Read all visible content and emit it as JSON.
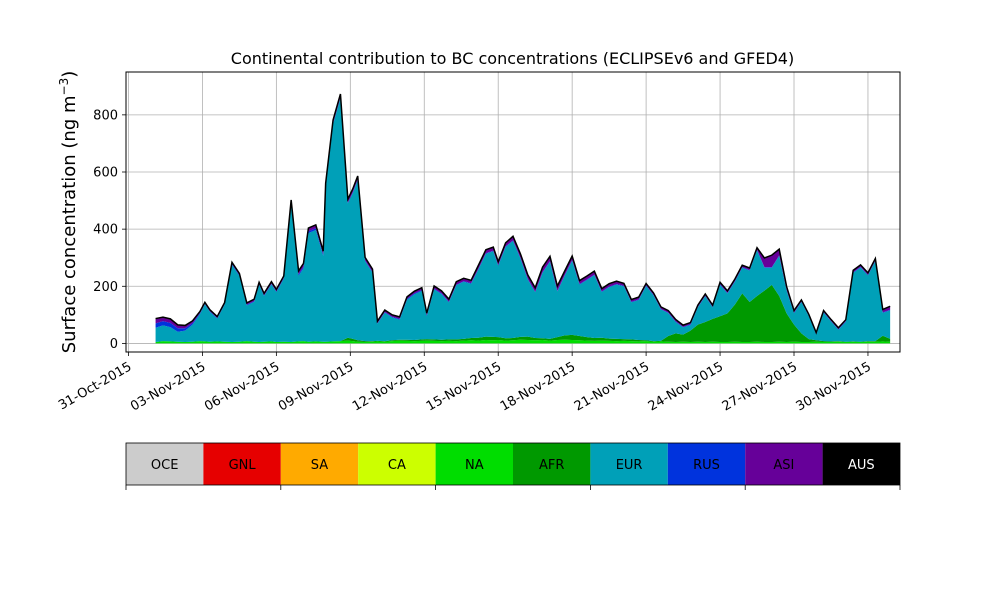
{
  "chart_data": {
    "type": "area",
    "title": "Continental contribution to BC concentrations (ECLIPSEv6 and GFED4)",
    "ylabel": "Surface concentration (ng m",
    "ylabel_superscript": "−3",
    "ylabel_close": ")",
    "xlabel": "",
    "ylim": [
      -30,
      950
    ],
    "yticks": [
      0,
      200,
      400,
      600,
      800
    ],
    "x_start": "31-Oct-2015",
    "x_days": [
      -0.1,
      31.3
    ],
    "x_tick_labels": [
      "31-Oct-2015",
      "03-Nov-2015",
      "06-Nov-2015",
      "09-Nov-2015",
      "12-Nov-2015",
      "15-Nov-2015",
      "18-Nov-2015",
      "21-Nov-2015",
      "24-Nov-2015",
      "27-Nov-2015",
      "30-Nov-2015"
    ],
    "grid": true,
    "legend_placement": "bottom colorbar",
    "x": [
      1.1,
      1.4,
      1.7,
      2.0,
      2.3,
      2.6,
      2.9,
      3.1,
      3.3,
      3.6,
      3.9,
      4.2,
      4.5,
      4.8,
      5.1,
      5.3,
      5.5,
      5.8,
      6.0,
      6.3,
      6.6,
      6.9,
      7.1,
      7.3,
      7.6,
      7.9,
      8.0,
      8.3,
      8.6,
      8.9,
      9.1,
      9.3,
      9.6,
      9.9,
      10.1,
      10.4,
      10.7,
      11.0,
      11.3,
      11.6,
      11.9,
      12.1,
      12.4,
      12.7,
      13.0,
      13.3,
      13.6,
      13.9,
      14.2,
      14.5,
      14.8,
      15.0,
      15.3,
      15.6,
      15.9,
      16.2,
      16.5,
      16.8,
      17.1,
      17.4,
      17.7,
      18.0,
      18.3,
      18.6,
      18.9,
      19.2,
      19.5,
      19.8,
      20.1,
      20.4,
      20.7,
      21.0,
      21.3,
      21.6,
      21.9,
      22.2,
      22.5,
      22.8,
      23.1,
      23.4,
      23.7,
      24.0,
      24.3,
      24.6,
      24.9,
      25.2,
      25.5,
      25.8,
      26.1,
      26.4,
      26.7,
      27.0,
      27.3,
      27.6,
      27.9,
      28.2,
      28.5,
      28.8,
      29.1,
      29.4,
      29.7,
      30.0,
      30.3,
      30.6,
      30.9
    ],
    "series": [
      {
        "name": "OCE",
        "color": "#cccccc",
        "values": [
          0,
          0,
          0,
          0,
          0,
          0,
          0,
          0,
          0,
          0,
          0,
          0,
          0,
          0,
          0,
          0,
          0,
          0,
          0,
          0,
          0,
          0,
          0,
          0,
          0,
          0,
          0,
          0,
          0,
          0,
          0,
          0,
          0,
          0,
          0,
          0,
          0,
          0,
          0,
          0,
          0,
          0,
          0,
          0,
          0,
          0,
          0,
          0,
          0,
          0,
          0,
          0,
          0,
          0,
          0,
          0,
          0,
          0,
          0,
          0,
          0,
          0,
          0,
          0,
          0,
          0,
          0,
          0,
          0,
          0,
          0,
          0,
          0,
          0,
          0,
          0,
          0,
          0,
          0,
          0,
          0,
          0,
          0,
          0,
          0,
          0,
          0,
          0,
          0,
          0,
          0,
          0,
          0,
          0,
          0,
          0,
          0,
          0,
          0,
          0,
          0,
          0,
          0,
          0,
          0
        ]
      },
      {
        "name": "GNL",
        "color": "#e60000",
        "values": [
          0,
          0,
          0,
          0,
          0,
          0,
          0,
          0,
          0,
          0,
          0,
          0,
          0,
          0,
          0,
          0,
          0,
          0,
          0,
          0,
          0,
          0,
          0,
          0,
          0,
          0,
          0,
          0,
          0,
          0,
          0,
          0,
          0,
          0,
          0,
          0,
          0,
          0,
          0,
          0,
          0,
          0,
          0,
          0,
          0,
          0,
          0,
          0,
          0,
          0,
          0,
          0,
          0,
          0,
          0,
          0,
          0,
          0,
          0,
          0,
          0,
          0,
          0,
          0,
          0,
          0,
          0,
          0,
          0,
          0,
          0,
          0,
          0,
          0,
          0,
          0,
          0,
          0,
          0,
          0,
          0,
          0,
          0,
          0,
          0,
          0,
          0,
          0,
          0,
          0,
          0,
          0,
          0,
          0,
          0,
          0,
          0,
          0,
          0,
          0,
          0,
          0,
          0,
          0,
          0
        ]
      },
      {
        "name": "SA",
        "color": "#ffaa00",
        "values": [
          0,
          0,
          0,
          0,
          0,
          0,
          0,
          0,
          0,
          0,
          0,
          0,
          0,
          0,
          0,
          0,
          0,
          0,
          0,
          0,
          0,
          0,
          0,
          0,
          0,
          0,
          0,
          0,
          0,
          0,
          0,
          0,
          0,
          0,
          0,
          0,
          0,
          0,
          0,
          0,
          0,
          0,
          0,
          0,
          0,
          0,
          0,
          0,
          0,
          0,
          0,
          0,
          0,
          0,
          0,
          0,
          0,
          0,
          0,
          0,
          0,
          0,
          0,
          0,
          0,
          0,
          0,
          0,
          0,
          0,
          0,
          0,
          0,
          0,
          0,
          0,
          0,
          0,
          0,
          0,
          0,
          0,
          0,
          0,
          0,
          0,
          0,
          0,
          0,
          0,
          0,
          0,
          0,
          0,
          0,
          0,
          0,
          0,
          0,
          0,
          0,
          0,
          0,
          0,
          0
        ]
      },
      {
        "name": "CA",
        "color": "#ccff00",
        "values": [
          0,
          0,
          0,
          0,
          0,
          0,
          0,
          0,
          0,
          0,
          0,
          0,
          0,
          0,
          0,
          0,
          0,
          0,
          0,
          0,
          0,
          0,
          0,
          0,
          0,
          0,
          0,
          0,
          0,
          0,
          0,
          0,
          0,
          0,
          0,
          0,
          0,
          0,
          0,
          0,
          0,
          0,
          0,
          0,
          0,
          0,
          0,
          0,
          0,
          0,
          0,
          0,
          0,
          0,
          0,
          0,
          0,
          0,
          0,
          0,
          0,
          0,
          0,
          0,
          0,
          0,
          0,
          0,
          0,
          0,
          0,
          0,
          0,
          0,
          0,
          0,
          0,
          0,
          0,
          0,
          0,
          0,
          0,
          0,
          0,
          0,
          0,
          0,
          0,
          0,
          0,
          0,
          0,
          0,
          0,
          0,
          0,
          0,
          0,
          0,
          0,
          0,
          0,
          0,
          0
        ]
      },
      {
        "name": "NA",
        "color": "#00dd00",
        "values": [
          5,
          8,
          7,
          6,
          5,
          6,
          8,
          7,
          6,
          7,
          6,
          5,
          6,
          8,
          6,
          5,
          6,
          7,
          5,
          6,
          5,
          7,
          8,
          6,
          7,
          6,
          6,
          7,
          8,
          10,
          8,
          6,
          5,
          6,
          7,
          6,
          8,
          10,
          9,
          8,
          9,
          10,
          9,
          8,
          9,
          8,
          10,
          11,
          10,
          12,
          11,
          12,
          10,
          11,
          13,
          12,
          11,
          12,
          10,
          12,
          13,
          12,
          11,
          10,
          9,
          10,
          9,
          8,
          9,
          8,
          7,
          8,
          6,
          7,
          6,
          5,
          6,
          5,
          6,
          5,
          6,
          5,
          5,
          6,
          5,
          5,
          6,
          5,
          5,
          6,
          5,
          6,
          5,
          5,
          6,
          5,
          5,
          6,
          5,
          6,
          5,
          6,
          6,
          7,
          6
        ]
      },
      {
        "name": "AFR",
        "color": "#009900",
        "values": [
          0,
          0,
          0,
          0,
          0,
          0,
          0,
          0,
          0,
          0,
          0,
          0,
          0,
          0,
          0,
          0,
          0,
          0,
          0,
          0,
          0,
          0,
          0,
          0,
          0,
          0,
          0,
          0,
          0,
          10,
          8,
          5,
          3,
          2,
          2,
          2,
          3,
          3,
          4,
          4,
          5,
          5,
          5,
          5,
          5,
          6,
          6,
          8,
          10,
          12,
          12,
          10,
          8,
          8,
          10,
          12,
          8,
          6,
          6,
          10,
          15,
          18,
          15,
          12,
          10,
          10,
          8,
          8,
          6,
          6,
          5,
          3,
          2,
          2,
          20,
          30,
          25,
          40,
          60,
          70,
          80,
          90,
          100,
          130,
          170,
          140,
          160,
          180,
          200,
          160,
          100,
          60,
          30,
          10,
          5,
          3,
          2,
          2,
          1,
          1,
          1,
          2,
          2,
          20,
          10
        ]
      },
      {
        "name": "EUR",
        "color": "#00a0b8",
        "values": [
          50,
          55,
          50,
          35,
          40,
          60,
          95,
          130,
          105,
          80,
          130,
          270,
          230,
          125,
          140,
          200,
          160,
          200,
          175,
          220,
          480,
          230,
          255,
          380,
          390,
          300,
          540,
          760,
          850,
          470,
          510,
          560,
          280,
          240,
          60,
          100,
          80,
          70,
          140,
          160,
          170,
          80,
          175,
          160,
          130,
          190,
          200,
          190,
          240,
          290,
          300,
          250,
          320,
          340,
          275,
          200,
          160,
          230,
          270,
          160,
          210,
          260,
          180,
          200,
          220,
          160,
          180,
          190,
          185,
          130,
          140,
          190,
          160,
          110,
          80,
          40,
          25,
          20,
          60,
          90,
          40,
          110,
          70,
          80,
          90,
          110,
          160,
          80,
          60,
          140,
          80,
          40,
          110,
          80,
          20,
          100,
          70,
          40,
          70,
          240,
          260,
          230,
          280,
          80,
          100
        ]
      },
      {
        "name": "RUS",
        "color": "#0033dd",
        "values": [
          15,
          15,
          15,
          12,
          8,
          5,
          3,
          2,
          2,
          2,
          2,
          3,
          3,
          3,
          2,
          2,
          2,
          2,
          2,
          3,
          5,
          5,
          5,
          6,
          6,
          5,
          3,
          3,
          3,
          3,
          3,
          3,
          3,
          2,
          2,
          2,
          2,
          3,
          3,
          3,
          3,
          3,
          3,
          2,
          2,
          2,
          2,
          2,
          2,
          2,
          2,
          2,
          2,
          2,
          2,
          2,
          2,
          2,
          2,
          2,
          2,
          2,
          2,
          2,
          2,
          2,
          2,
          2,
          2,
          2,
          2,
          2,
          2,
          2,
          2,
          2,
          2,
          2,
          2,
          2,
          2,
          2,
          2,
          2,
          2,
          2,
          2,
          2,
          2,
          2,
          2,
          2,
          2,
          2,
          2,
          2,
          2,
          2,
          2,
          2,
          2,
          2,
          2,
          2,
          2
        ]
      },
      {
        "name": "ASI",
        "color": "#660099",
        "values": [
          15,
          12,
          12,
          10,
          8,
          6,
          4,
          3,
          3,
          3,
          3,
          4,
          4,
          4,
          5,
          5,
          5,
          5,
          5,
          5,
          10,
          10,
          10,
          10,
          10,
          10,
          10,
          10,
          10,
          10,
          10,
          10,
          8,
          8,
          5,
          5,
          5,
          5,
          5,
          6,
          6,
          6,
          7,
          7,
          7,
          8,
          8,
          8,
          10,
          10,
          10,
          10,
          10,
          12,
          12,
          12,
          12,
          15,
          15,
          15,
          12,
          12,
          10,
          10,
          10,
          8,
          8,
          8,
          6,
          6,
          6,
          5,
          5,
          5,
          5,
          5,
          4,
          4,
          4,
          4,
          4,
          5,
          5,
          5,
          5,
          5,
          5,
          30,
          40,
          20,
          10,
          5,
          3,
          3,
          3,
          3,
          3,
          3,
          3,
          5,
          5,
          5,
          5,
          8,
          10
        ]
      },
      {
        "name": "AUS",
        "color": "#000000",
        "values": [
          2,
          2,
          2,
          2,
          2,
          2,
          2,
          2,
          2,
          2,
          2,
          2,
          2,
          2,
          2,
          2,
          2,
          2,
          2,
          2,
          2,
          2,
          2,
          2,
          2,
          2,
          2,
          2,
          2,
          2,
          2,
          2,
          2,
          2,
          2,
          2,
          2,
          2,
          2,
          2,
          2,
          2,
          2,
          2,
          2,
          2,
          2,
          2,
          2,
          2,
          2,
          2,
          2,
          2,
          2,
          2,
          2,
          2,
          2,
          2,
          2,
          2,
          2,
          2,
          2,
          2,
          2,
          2,
          2,
          2,
          2,
          2,
          2,
          2,
          2,
          2,
          2,
          2,
          2,
          2,
          2,
          2,
          2,
          2,
          2,
          2,
          2,
          2,
          2,
          2,
          2,
          2,
          2,
          2,
          2,
          2,
          2,
          2,
          2,
          2,
          2,
          2,
          2,
          2,
          2
        ]
      }
    ]
  }
}
